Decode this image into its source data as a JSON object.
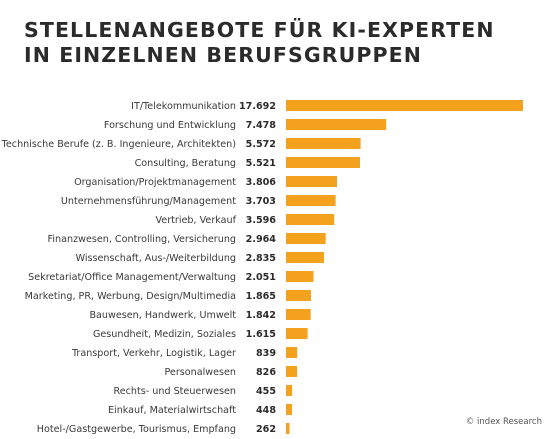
{
  "title_lines": [
    "STELLENANGEBOTE FÜR KI-EXPERTEN",
    "IN EINZELNEN BERUFSGRUPPEN"
  ],
  "credit": "© index Research",
  "colors": {
    "bar": "#f4a11d",
    "label": "#3a3a3a",
    "value": "#2b2b2b"
  },
  "chart_data": {
    "type": "bar",
    "orientation": "horizontal",
    "title": "STELLENANGEBOTE FÜR KI-EXPERTEN IN EINZELNEN BERUFSGRUPPEN",
    "categories": [
      "IT/Telekommunikation",
      "Forschung und Entwicklung",
      "Technische Berufe (z. B. Ingenieure, Architekten)",
      "Consulting, Beratung",
      "Organisation/Projektmanagement",
      "Unternehmensführung/Management",
      "Vertrieb, Verkauf",
      "Finanzwesen, Controlling, Versicherung",
      "Wissenschaft, Aus-/Weiterbildung",
      "Sekretariat/Office Management/Verwaltung",
      "Marketing, PR, Werbung, Design/Multimedia",
      "Bauwesen, Handwerk, Umwelt",
      "Gesundheit, Medizin, Soziales",
      "Transport, Verkehr, Logistik, Lager",
      "Personalwesen",
      "Rechts- und Steuerwesen",
      "Einkauf, Materialwirtschaft",
      "Hotel-/Gastgewerbe, Tourismus, Empfang"
    ],
    "values": [
      17692,
      7478,
      5572,
      5521,
      3806,
      3703,
      3596,
      2964,
      2835,
      2051,
      1865,
      1842,
      1615,
      839,
      826,
      455,
      448,
      262
    ],
    "value_labels": [
      "17.692",
      "7.478",
      "5.572",
      "5.521",
      "3.806",
      "3.703",
      "3.596",
      "2.964",
      "2.835",
      "2.051",
      "1.865",
      "1.842",
      "1.615",
      "839",
      "826",
      "455",
      "448",
      "262"
    ],
    "xlim": [
      0,
      17692
    ],
    "grid": false,
    "legend": "none"
  }
}
